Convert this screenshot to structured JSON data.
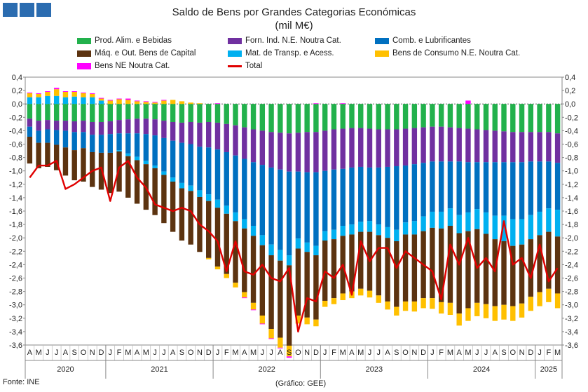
{
  "chart_data": {
    "type": "bar",
    "subtype": "stacked bar with total line",
    "title": "Saldo de Bens por Grandes Categorias Económicas",
    "subtitle": "(mil M€)",
    "ylim": [
      -3.6,
      0.4
    ],
    "yticks": [
      "0,4",
      "0,2",
      "0,0",
      "-0,2",
      "-0,4",
      "-0,6",
      "-0,8",
      "-1,0",
      "-1,2",
      "-1,4",
      "-1,6",
      "-1,8",
      "-2,0",
      "-2,2",
      "-2,4",
      "-2,6",
      "-2,8",
      "-3,0",
      "-3,2",
      "-3,4",
      "-3,6"
    ],
    "grid": false,
    "legend_position": "top",
    "months": [
      "A",
      "M",
      "J",
      "J",
      "A",
      "S",
      "O",
      "N",
      "D",
      "J",
      "F",
      "M",
      "A",
      "M",
      "J",
      "J",
      "A",
      "S",
      "O",
      "N",
      "D",
      "J",
      "F",
      "M",
      "A",
      "M",
      "J",
      "J",
      "A",
      "S",
      "O",
      "N",
      "D",
      "J",
      "F",
      "M",
      "A",
      "M",
      "J",
      "J",
      "A",
      "S",
      "O",
      "N",
      "D",
      "J",
      "F",
      "M",
      "A",
      "M",
      "J",
      "J",
      "A",
      "S",
      "O",
      "N",
      "D",
      "J",
      "F",
      "M"
    ],
    "years": [
      {
        "label": "2020",
        "start": 0,
        "count": 9
      },
      {
        "label": "2021",
        "start": 9,
        "count": 12
      },
      {
        "label": "2022",
        "start": 21,
        "count": 12
      },
      {
        "label": "2023",
        "start": 33,
        "count": 12
      },
      {
        "label": "2024",
        "start": 45,
        "count": 12
      },
      {
        "label": "2025",
        "start": 57,
        "count": 3
      }
    ],
    "series": [
      {
        "name": "Prod. Alim. e Bebidas",
        "color": "#22b14c",
        "values": [
          -0.22,
          -0.25,
          -0.24,
          -0.25,
          -0.25,
          -0.26,
          -0.25,
          -0.27,
          -0.27,
          -0.26,
          -0.24,
          -0.23,
          -0.22,
          -0.22,
          -0.23,
          -0.25,
          -0.27,
          -0.28,
          -0.27,
          -0.28,
          -0.27,
          -0.28,
          -0.3,
          -0.32,
          -0.35,
          -0.38,
          -0.4,
          -0.42,
          -0.43,
          -0.44,
          -0.43,
          -0.42,
          -0.42,
          -0.4,
          -0.38,
          -0.37,
          -0.36,
          -0.36,
          -0.37,
          -0.38,
          -0.38,
          -0.38,
          -0.37,
          -0.36,
          -0.35,
          -0.34,
          -0.34,
          -0.35,
          -0.36,
          -0.37,
          -0.38,
          -0.39,
          -0.4,
          -0.41,
          -0.42,
          -0.42,
          -0.42,
          -0.42,
          -0.42,
          -0.44
        ]
      },
      {
        "name": "Forn. Ind. N.E. Noutra Cat.",
        "color": "#7030a0",
        "values": [
          -0.12,
          -0.15,
          -0.14,
          -0.14,
          -0.15,
          -0.16,
          -0.17,
          -0.19,
          -0.19,
          -0.19,
          -0.2,
          -0.21,
          -0.22,
          -0.23,
          -0.24,
          -0.26,
          -0.28,
          -0.3,
          -0.33,
          -0.36,
          -0.38,
          -0.4,
          -0.42,
          -0.45,
          -0.47,
          -0.49,
          -0.51,
          -0.53,
          -0.55,
          -0.57,
          -0.58,
          -0.6,
          -0.6,
          -0.6,
          -0.6,
          -0.6,
          -0.59,
          -0.58,
          -0.58,
          -0.57,
          -0.56,
          -0.55,
          -0.55,
          -0.54,
          -0.53,
          -0.52,
          -0.52,
          -0.51,
          -0.5,
          -0.5,
          -0.49,
          -0.48,
          -0.47,
          -0.46,
          -0.45,
          -0.45,
          -0.44,
          -0.44,
          -0.44,
          -0.44
        ]
      },
      {
        "name": "Comb. e Lubrificantes",
        "color": "#0070c0",
        "values": [
          -0.15,
          -0.18,
          -0.2,
          -0.22,
          -0.25,
          -0.27,
          -0.24,
          -0.26,
          -0.27,
          -0.28,
          -0.25,
          -0.3,
          -0.35,
          -0.4,
          -0.45,
          -0.5,
          -0.55,
          -0.6,
          -0.62,
          -0.65,
          -0.7,
          -0.75,
          -0.8,
          -0.85,
          -0.9,
          -0.95,
          -1.05,
          -1.15,
          -1.2,
          -1.25,
          -1.0,
          -1.05,
          -1.1,
          -0.9,
          -0.9,
          -0.85,
          -0.85,
          -0.82,
          -0.8,
          -0.85,
          -0.9,
          -0.95,
          -0.85,
          -0.85,
          -0.8,
          -0.75,
          -0.75,
          -0.7,
          -0.8,
          -0.75,
          -0.7,
          -0.75,
          -0.8,
          -0.8,
          -0.85,
          -0.85,
          -0.8,
          -0.75,
          -0.7,
          -0.7
        ]
      },
      {
        "name": "Mat. de Transp. e Acess.",
        "color": "#00b0f0",
        "values": [
          0.1,
          0.1,
          0.12,
          0.12,
          0.1,
          0.11,
          0.1,
          0.1,
          0.05,
          0.0,
          -0.02,
          -0.04,
          -0.05,
          -0.05,
          -0.04,
          -0.05,
          -0.06,
          -0.08,
          -0.08,
          -0.1,
          -0.1,
          -0.12,
          -0.12,
          -0.13,
          -0.14,
          -0.15,
          -0.15,
          -0.16,
          -0.16,
          -0.15,
          -0.15,
          -0.14,
          -0.14,
          -0.14,
          -0.14,
          -0.15,
          -0.15,
          -0.15,
          -0.16,
          -0.16,
          -0.16,
          -0.17,
          -0.18,
          -0.2,
          -0.22,
          -0.24,
          -0.25,
          -0.26,
          -0.27,
          -0.28,
          -0.3,
          -0.32,
          -0.35,
          -0.38,
          -0.4,
          -0.38,
          -0.36,
          -0.35,
          -0.35,
          -0.4
        ]
      },
      {
        "name": "Máq. e Out. Bens de Capital",
        "color": "#5c3310",
        "values": [
          -0.4,
          -0.38,
          -0.36,
          -0.38,
          -0.42,
          -0.45,
          -0.5,
          -0.52,
          -0.55,
          -0.6,
          -0.6,
          -0.62,
          -0.65,
          -0.68,
          -0.7,
          -0.72,
          -0.75,
          -0.78,
          -0.8,
          -0.82,
          -0.85,
          -0.88,
          -0.9,
          -0.92,
          -0.95,
          -1.0,
          -1.05,
          -1.1,
          -1.15,
          -1.2,
          -1.0,
          -0.98,
          -0.96,
          -0.9,
          -0.88,
          -0.86,
          -0.85,
          -0.85,
          -0.88,
          -0.9,
          -0.95,
          -0.98,
          -1.0,
          -1.0,
          -1.0,
          -1.05,
          -1.1,
          -1.15,
          -1.2,
          -1.15,
          -1.1,
          -1.05,
          -1.0,
          -0.95,
          -0.9,
          -0.88,
          -0.86,
          -0.85,
          -0.85,
          -0.85
        ]
      },
      {
        "name": "Bens de Consumo N.E. Noutra Cat.",
        "color": "#ffc000",
        "values": [
          0.06,
          0.05,
          0.06,
          0.1,
          0.08,
          0.07,
          0.06,
          0.05,
          0.03,
          0.05,
          0.07,
          0.06,
          0.04,
          0.03,
          0.02,
          0.05,
          0.06,
          0.04,
          0.02,
          0.01,
          -0.02,
          -0.04,
          -0.06,
          -0.07,
          -0.08,
          -0.1,
          -0.12,
          -0.14,
          -0.15,
          -0.16,
          -0.12,
          -0.1,
          -0.1,
          -0.09,
          -0.09,
          -0.1,
          -0.1,
          -0.1,
          -0.1,
          -0.11,
          -0.12,
          -0.13,
          -0.14,
          -0.15,
          -0.15,
          -0.16,
          -0.17,
          -0.18,
          -0.18,
          -0.19,
          -0.2,
          -0.21,
          -0.22,
          -0.22,
          -0.22,
          -0.21,
          -0.21,
          -0.21,
          -0.2,
          -0.22
        ]
      },
      {
        "name": "Bens NE Noutra Cat.",
        "color": "#ff00ff",
        "values": [
          0.01,
          0.01,
          0.01,
          0.02,
          0.01,
          0.01,
          0.01,
          0.01,
          0.01,
          0.01,
          0.01,
          0.02,
          0.01,
          0.01,
          0.01,
          0.01,
          0.0,
          0.0,
          0.0,
          0.0,
          0.0,
          0.01,
          0.0,
          0.0,
          -0.01,
          -0.01,
          -0.01,
          -0.01,
          -0.01,
          -0.02,
          0.0,
          0.0,
          0.01,
          0.0,
          0.0,
          0.01,
          0.0,
          0.0,
          0.0,
          0.0,
          0.0,
          0.0,
          0.0,
          0.0,
          0.0,
          0.0,
          0.0,
          0.0,
          0.0,
          0.05,
          0.0,
          0.0,
          0.0,
          0.0,
          0.0,
          0.0,
          0.0,
          0.0,
          0.0,
          0.0
        ]
      }
    ],
    "total": {
      "name": "Total",
      "color": "#e00000",
      "values": [
        -1.1,
        -0.92,
        -0.92,
        -0.85,
        -1.27,
        -1.2,
        -1.1,
        -1.0,
        -0.95,
        -1.45,
        -0.95,
        -0.85,
        -1.1,
        -1.25,
        -1.5,
        -1.55,
        -1.6,
        -1.55,
        -1.6,
        -1.8,
        -1.9,
        -2.05,
        -2.5,
        -2.05,
        -2.5,
        -2.55,
        -2.4,
        -2.6,
        -2.65,
        -2.45,
        -3.4,
        -2.9,
        -2.95,
        -2.5,
        -2.6,
        -2.4,
        -2.85,
        -2.05,
        -2.35,
        -2.15,
        -2.15,
        -2.45,
        -2.2,
        -2.3,
        -2.4,
        -2.5,
        -2.92,
        -2.1,
        -2.4,
        -2.0,
        -2.45,
        -2.3,
        -2.5,
        -1.75,
        -2.4,
        -2.3,
        -2.6,
        -2.1,
        -2.65,
        -2.45
      ]
    }
  },
  "footer": {
    "source": "Fonte: INE",
    "credit": "(Gráfico: GEE)"
  },
  "logo": {
    "color": "#2b6cb0"
  }
}
